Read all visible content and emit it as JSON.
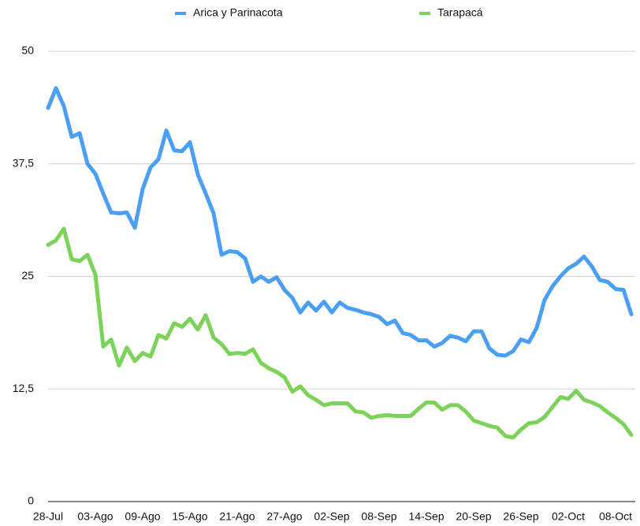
{
  "chart_data": {
    "type": "line",
    "categories": [
      "28-Jul",
      null,
      null,
      null,
      null,
      null,
      "03-Ago",
      null,
      null,
      null,
      null,
      null,
      "09-Ago",
      null,
      null,
      null,
      null,
      null,
      "15-Ago",
      null,
      null,
      null,
      null,
      null,
      "21-Ago",
      null,
      null,
      null,
      null,
      null,
      "27-Ago",
      null,
      null,
      null,
      null,
      null,
      "02-Sep",
      null,
      null,
      null,
      null,
      null,
      "08-Sep",
      null,
      null,
      null,
      null,
      null,
      "14-Sep",
      null,
      null,
      null,
      null,
      null,
      "20-Sep",
      null,
      null,
      null,
      null,
      null,
      "26-Sep",
      null,
      null,
      null,
      null,
      null,
      "02-Oct",
      null,
      null,
      null,
      null,
      null,
      "08-Oct",
      null,
      null
    ],
    "series": [
      {
        "name": "Arica y Parinacota",
        "color": "#4a9ff5",
        "values": [
          43.7,
          45.9,
          43.9,
          40.5,
          40.9,
          37.5,
          36.4,
          34.2,
          32.1,
          32.0,
          32.1,
          30.4,
          34.7,
          37.1,
          38.0,
          41.2,
          39.0,
          38.9,
          39.9,
          36.3,
          34.2,
          32.0,
          27.4,
          27.8,
          27.7,
          27.0,
          24.4,
          25.0,
          24.4,
          24.9,
          23.5,
          22.6,
          21.0,
          22.1,
          21.2,
          22.2,
          21.0,
          22.1,
          21.5,
          21.3,
          21.0,
          20.8,
          20.5,
          19.7,
          20.1,
          18.7,
          18.5,
          17.9,
          17.9,
          17.2,
          17.6,
          18.4,
          18.2,
          17.8,
          18.9,
          18.9,
          17.0,
          16.3,
          16.2,
          16.7,
          18.0,
          17.7,
          19.3,
          22.4,
          23.9,
          25.0,
          25.9,
          26.4,
          27.2,
          26.1,
          24.6,
          24.4,
          23.6,
          23.5,
          20.8
        ]
      },
      {
        "name": "Tarapacá",
        "color": "#7dd35a",
        "values": [
          28.5,
          29.0,
          30.3,
          26.9,
          26.7,
          27.4,
          25.2,
          17.2,
          18.0,
          15.1,
          17.1,
          15.6,
          16.5,
          16.1,
          18.5,
          18.1,
          19.8,
          19.4,
          20.3,
          19.1,
          20.7,
          18.2,
          17.5,
          16.4,
          16.5,
          16.4,
          16.9,
          15.4,
          14.8,
          14.4,
          13.8,
          12.2,
          12.8,
          11.8,
          11.3,
          10.7,
          10.9,
          10.9,
          10.9,
          10.0,
          9.9,
          9.3,
          9.5,
          9.6,
          9.5,
          9.5,
          9.5,
          10.3,
          11.0,
          11.0,
          10.2,
          10.7,
          10.7,
          10.0,
          9.0,
          8.7,
          8.4,
          8.2,
          7.3,
          7.1,
          8.0,
          8.7,
          8.8,
          9.4,
          10.5,
          11.6,
          11.4,
          12.3,
          11.3,
          11.0,
          10.6,
          9.9,
          9.3,
          8.6,
          7.4
        ]
      }
    ],
    "ylim": [
      0,
      50
    ],
    "yticks": [
      0,
      {
        "value": 12.5,
        "label": "12,5"
      },
      25,
      {
        "value": 37.5,
        "label": "37,5"
      },
      50
    ],
    "grid": true,
    "legend": "top"
  }
}
